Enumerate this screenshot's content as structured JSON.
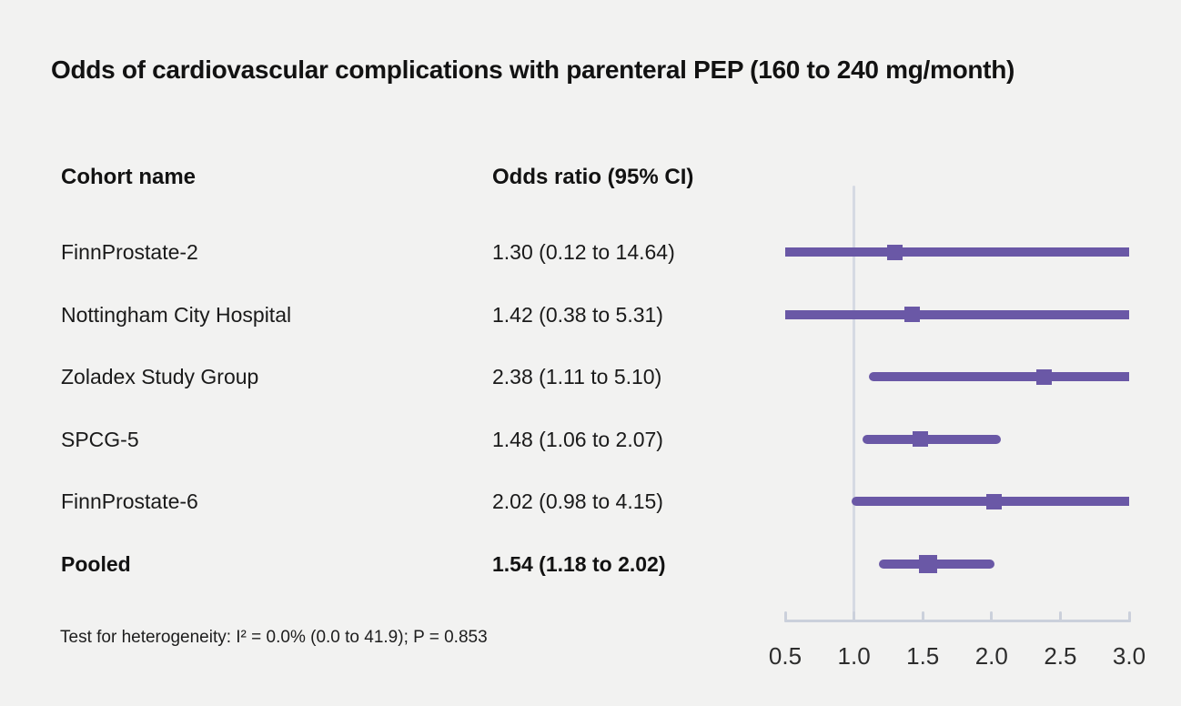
{
  "title": "Odds of cardiovascular complications with parenteral PEP (160 to 240 mg/month)",
  "table": {
    "col1_header": "Cohort name",
    "col2_header": "Odds ratio (95% CI)",
    "rows": [
      {
        "name": "FinnProstate-2",
        "or_ci": "1.30 (0.12 to 14.64)"
      },
      {
        "name": "Nottingham City Hospital",
        "or_ci": "1.42 (0.38 to 5.31)"
      },
      {
        "name": "Zoladex Study Group",
        "or_ci": "2.38 (1.11 to 5.10)"
      },
      {
        "name": "SPCG-5",
        "or_ci": "1.48 (1.06 to 2.07)"
      },
      {
        "name": "FinnProstate-6",
        "or_ci": "2.02 (0.98 to 4.15)"
      },
      {
        "name": "Pooled",
        "or_ci": "1.54 (1.18 to 2.02)"
      }
    ]
  },
  "footnote": "Test for heterogeneity: I² = 0.0% (0.0 to 41.9); P = 0.853",
  "chart_data": {
    "type": "forest",
    "title": "Odds of cardiovascular complications with parenteral PEP (160 to 240 mg/month)",
    "xlim": [
      0.5,
      3.0
    ],
    "x_ticks": [
      "0.5",
      "1.0",
      "1.5",
      "2.0",
      "2.5",
      "3.0"
    ],
    "x_tick_values": [
      0.5,
      1.0,
      1.5,
      2.0,
      2.5,
      3.0
    ],
    "reference_value": 1.0,
    "note": "Confidence intervals extending beyond the 0.5–3.0 axis range are truncated (squared ends); point estimates shown as squares",
    "series": [
      {
        "label": "FinnProstate-2",
        "estimate": 1.3,
        "ci_low": 0.12,
        "ci_high": 14.64,
        "pooled": false
      },
      {
        "label": "Nottingham City Hospital",
        "estimate": 1.42,
        "ci_low": 0.38,
        "ci_high": 5.31,
        "pooled": false
      },
      {
        "label": "Zoladex Study Group",
        "estimate": 2.38,
        "ci_low": 1.11,
        "ci_high": 5.1,
        "pooled": false
      },
      {
        "label": "SPCG-5",
        "estimate": 1.48,
        "ci_low": 1.06,
        "ci_high": 2.07,
        "pooled": false
      },
      {
        "label": "FinnProstate-6",
        "estimate": 2.02,
        "ci_low": 0.98,
        "ci_high": 4.15,
        "pooled": false
      },
      {
        "label": "Pooled",
        "estimate": 1.54,
        "ci_low": 1.18,
        "ci_high": 2.02,
        "pooled": true
      }
    ],
    "colors": {
      "ci_line": "#6a58a6",
      "marker": "#6a58a6",
      "reference_line": "#d6dae3",
      "axis": "#cbd0db",
      "background": "#f2f2f1",
      "text": "#1a1a1a"
    }
  }
}
